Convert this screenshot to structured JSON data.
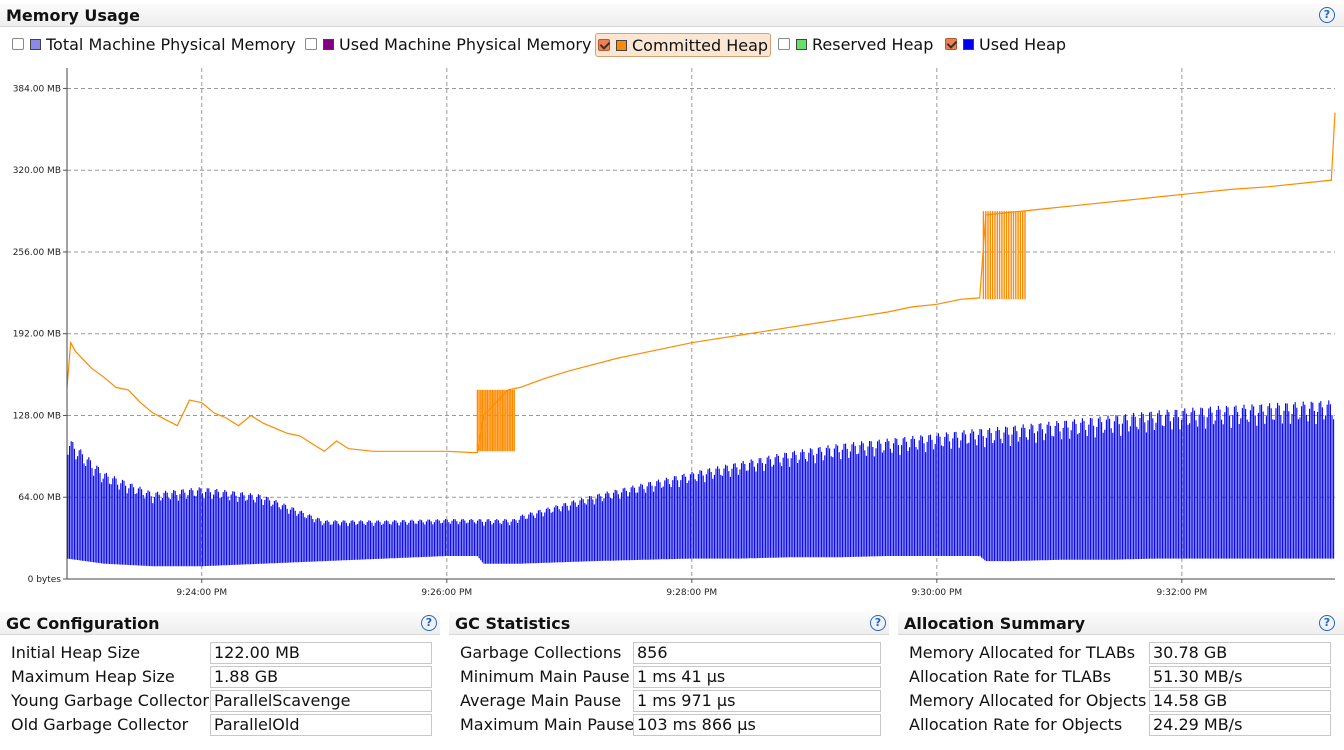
{
  "memory_usage": {
    "title": "Memory Usage",
    "legend": [
      {
        "label": "Total Machine Physical Memory",
        "checked": false,
        "color": "#8a8ae8"
      },
      {
        "label": "Used Machine Physical Memory",
        "checked": false,
        "color": "#800080"
      },
      {
        "label": "Committed Heap",
        "checked": true,
        "color": "#ff8a00"
      },
      {
        "label": "Reserved Heap",
        "checked": false,
        "color": "#66e066"
      },
      {
        "label": "Used Heap",
        "checked": true,
        "color": "#0000ee"
      }
    ]
  },
  "chart_data": {
    "type": "line",
    "y_ticks": [
      "0 bytes",
      "64.00 MB",
      "128.00 MB",
      "192.00 MB",
      "256.00 MB",
      "320.00 MB",
      "384.00 MB"
    ],
    "ylim": [
      0,
      400
    ],
    "x_ticks": [
      "9:24:00 PM",
      "9:26:00 PM",
      "9:28:00 PM",
      "9:30:00 PM",
      "9:32:00 PM"
    ],
    "x_tick_minutes": [
      24,
      26,
      28,
      30,
      32
    ],
    "xlim": [
      22.9,
      33.25
    ],
    "grid": true,
    "series": [
      {
        "name": "Committed Heap",
        "color": "#ff8a00",
        "x": [
          22.9,
          22.93,
          22.97,
          23.0,
          23.1,
          23.2,
          23.3,
          23.4,
          23.5,
          23.6,
          23.7,
          23.8,
          23.9,
          24.0,
          24.1,
          24.2,
          24.3,
          24.4,
          24.5,
          24.6,
          24.7,
          24.8,
          24.9,
          25.0,
          25.1,
          25.2,
          25.4,
          25.6,
          25.8,
          26.0,
          26.2,
          26.25,
          26.3,
          26.5,
          26.6,
          26.8,
          27.0,
          27.2,
          27.4,
          27.6,
          27.8,
          28.0,
          28.2,
          28.4,
          28.6,
          28.8,
          29.0,
          29.2,
          29.4,
          29.6,
          29.8,
          30.0,
          30.2,
          30.35,
          30.4,
          30.5,
          30.6,
          30.7,
          30.9,
          31.2,
          31.5,
          31.8,
          32.1,
          32.4,
          32.7,
          33.0,
          33.2,
          33.22,
          33.25
        ],
        "y": [
          150,
          185,
          178,
          175,
          165,
          158,
          150,
          148,
          138,
          130,
          125,
          120,
          140,
          138,
          130,
          126,
          120,
          128,
          122,
          118,
          114,
          112,
          106,
          100,
          108,
          102,
          100,
          100,
          100,
          100,
          99,
          99,
          128,
          148,
          150,
          157,
          163,
          168,
          173,
          177,
          181,
          185,
          188,
          191,
          194,
          197,
          200,
          203,
          206,
          209,
          213,
          215,
          219,
          220,
          285,
          286,
          287,
          288,
          290,
          293,
          296,
          299,
          302,
          305,
          307,
          310,
          312,
          312,
          365
        ]
      },
      {
        "name": "Used Heap",
        "color": "#0000ee",
        "x": [
          22.9,
          23.2,
          23.6,
          24.0,
          24.5,
          25.0,
          25.5,
          26.0,
          26.25,
          26.3,
          26.55,
          26.6,
          26.9,
          27.2,
          27.6,
          28.0,
          28.4,
          28.8,
          29.2,
          29.6,
          30.0,
          30.35,
          30.4,
          30.6,
          31.0,
          31.4,
          31.8,
          32.2,
          32.6,
          33.0,
          33.25
        ],
        "y_min": [
          16,
          12,
          10,
          10,
          12,
          14,
          16,
          18,
          18,
          12,
          12,
          12,
          13,
          14,
          15,
          16,
          16,
          17,
          17,
          18,
          18,
          18,
          14,
          14,
          15,
          15,
          16,
          16,
          16,
          16,
          16
        ],
        "y_max": [
          112,
          84,
          68,
          72,
          66,
          46,
          46,
          47,
          47,
          47,
          47,
          50,
          58,
          66,
          75,
          84,
          92,
          100,
          106,
          110,
          114,
          118,
          118,
          120,
          124,
          128,
          132,
          135,
          137,
          139,
          140
        ]
      }
    ]
  },
  "gc_configuration": {
    "title": "GC Configuration",
    "rows": [
      {
        "label": "Initial Heap Size",
        "value": "122.00 MB"
      },
      {
        "label": "Maximum Heap Size",
        "value": "1.88 GB"
      },
      {
        "label": "Young Garbage Collector",
        "value": "ParallelScavenge"
      },
      {
        "label": "Old Garbage Collector",
        "value": "ParallelOld"
      }
    ]
  },
  "gc_statistics": {
    "title": "GC Statistics",
    "rows": [
      {
        "label": "Garbage Collections",
        "value": "856"
      },
      {
        "label": "Minimum Main Pause",
        "value": "1 ms 41 µs"
      },
      {
        "label": "Average Main Pause",
        "value": "1 ms 971 µs"
      },
      {
        "label": "Maximum Main Pause",
        "value": "103 ms 866 µs"
      }
    ]
  },
  "allocation_summary": {
    "title": "Allocation Summary",
    "rows": [
      {
        "label": "Memory Allocated for TLABs",
        "value": "30.78 GB"
      },
      {
        "label": "Allocation Rate for TLABs",
        "value": "51.30 MB/s"
      },
      {
        "label": "Memory Allocated for Objects",
        "value": "14.58 GB"
      },
      {
        "label": "Allocation Rate for Objects",
        "value": "24.29 MB/s"
      }
    ]
  }
}
